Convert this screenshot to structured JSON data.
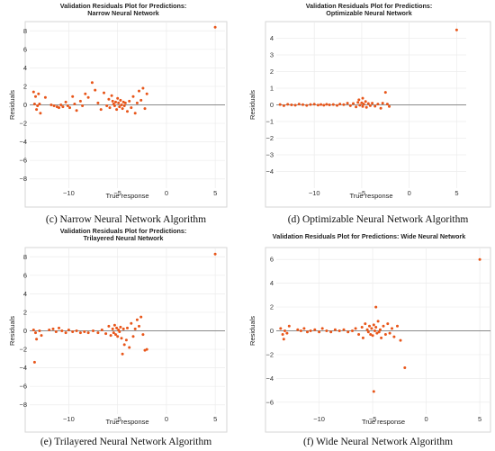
{
  "chart_data": [
    {
      "type": "scatter",
      "title_lines": [
        "Validation Residuals Plot for Predictions:",
        "Narrow Neural Network"
      ],
      "xlabel": "True response",
      "ylabel": "Residuals",
      "caption": "(c) Narrow Neural Network Algorithm",
      "xlim": [
        -14,
        6
      ],
      "ylim": [
        -9,
        9
      ],
      "xticks": [
        -10,
        -5,
        0,
        5
      ],
      "yticks": [
        -8,
        -6,
        -4,
        -2,
        0,
        2,
        4,
        6,
        8
      ],
      "grid": true,
      "color": "#e8561a",
      "points": [
        [
          -13.6,
          1.4
        ],
        [
          -13.4,
          0.9
        ],
        [
          -13.5,
          0.1
        ],
        [
          -13.2,
          -0.1
        ],
        [
          -13.0,
          0.1
        ],
        [
          -13.3,
          -0.5
        ],
        [
          -13.1,
          1.2
        ],
        [
          -12.9,
          -0.9
        ],
        [
          -12.4,
          0.8
        ],
        [
          -11.8,
          0.0
        ],
        [
          -11.5,
          -0.1
        ],
        [
          -11.2,
          -0.2
        ],
        [
          -11.0,
          -0.3
        ],
        [
          -10.8,
          0.0
        ],
        [
          -10.6,
          -0.2
        ],
        [
          -10.3,
          0.3
        ],
        [
          -10.1,
          -0.1
        ],
        [
          -9.9,
          -0.3
        ],
        [
          -9.6,
          0.9
        ],
        [
          -9.4,
          0.1
        ],
        [
          -9.2,
          -0.6
        ],
        [
          -8.8,
          0.4
        ],
        [
          -8.6,
          -0.1
        ],
        [
          -8.3,
          1.2
        ],
        [
          -8.0,
          0.8
        ],
        [
          -7.6,
          2.4
        ],
        [
          -7.3,
          1.6
        ],
        [
          -7.0,
          0.2
        ],
        [
          -6.7,
          -0.5
        ],
        [
          -6.4,
          1.3
        ],
        [
          -6.1,
          -0.1
        ],
        [
          -5.9,
          0.6
        ],
        [
          -5.8,
          -0.3
        ],
        [
          -5.6,
          1.0
        ],
        [
          -5.5,
          0.4
        ],
        [
          -5.4,
          0.1
        ],
        [
          -5.3,
          -0.1
        ],
        [
          -5.2,
          0.3
        ],
        [
          -5.1,
          -0.5
        ],
        [
          -5.0,
          0.7
        ],
        [
          -4.9,
          0.2
        ],
        [
          -4.8,
          -0.2
        ],
        [
          -4.7,
          0.5
        ],
        [
          -4.6,
          0.0
        ],
        [
          -4.5,
          -0.4
        ],
        [
          -4.4,
          0.3
        ],
        [
          -4.3,
          -0.1
        ],
        [
          -4.2,
          0.2
        ],
        [
          -4.0,
          -0.7
        ],
        [
          -3.8,
          0.4
        ],
        [
          -3.6,
          -0.3
        ],
        [
          -3.4,
          0.9
        ],
        [
          -3.2,
          -0.9
        ],
        [
          -3.0,
          0.2
        ],
        [
          -2.8,
          1.5
        ],
        [
          -2.6,
          0.5
        ],
        [
          -2.4,
          1.8
        ],
        [
          -2.2,
          -0.4
        ],
        [
          -2.0,
          1.2
        ],
        [
          5.0,
          8.4
        ]
      ]
    },
    {
      "type": "scatter",
      "title_lines": [
        "Validation Residuals Plot for Predictions:",
        "Optimizable Neural Network"
      ],
      "xlabel": "True response",
      "ylabel": "Residuals",
      "caption": "(d) Optimizable Neural Network Algorithm",
      "xlim": [
        -14,
        6
      ],
      "ylim": [
        -5,
        5
      ],
      "xticks": [
        -10,
        -5,
        0,
        5
      ],
      "yticks": [
        -4,
        -3,
        -2,
        -1,
        0,
        1,
        2,
        3,
        4
      ],
      "grid": true,
      "color": "#e8561a",
      "points": [
        [
          -13.6,
          0.02
        ],
        [
          -13.2,
          -0.05
        ],
        [
          -12.8,
          0.03
        ],
        [
          -12.4,
          0.0
        ],
        [
          -12.0,
          -0.02
        ],
        [
          -11.6,
          0.05
        ],
        [
          -11.2,
          0.01
        ],
        [
          -10.8,
          -0.03
        ],
        [
          -10.4,
          0.02
        ],
        [
          -10.0,
          0.04
        ],
        [
          -9.6,
          -0.01
        ],
        [
          -9.3,
          0.02
        ],
        [
          -9.0,
          -0.02
        ],
        [
          -8.7,
          0.03
        ],
        [
          -8.4,
          0.0
        ],
        [
          -8.0,
          0.02
        ],
        [
          -7.6,
          -0.03
        ],
        [
          -7.3,
          0.05
        ],
        [
          -6.9,
          0.01
        ],
        [
          -6.5,
          0.1
        ],
        [
          -6.2,
          -0.05
        ],
        [
          -5.9,
          0.08
        ],
        [
          -5.6,
          -0.12
        ],
        [
          -5.4,
          0.15
        ],
        [
          -5.2,
          -0.02
        ],
        [
          -5.0,
          0.12
        ],
        [
          -4.9,
          -0.1
        ],
        [
          -4.8,
          0.05
        ],
        [
          -4.6,
          0.2
        ],
        [
          -4.5,
          -0.15
        ],
        [
          -4.3,
          0.08
        ],
        [
          -4.1,
          -0.05
        ],
        [
          -4.9,
          0.4
        ],
        [
          -5.3,
          0.3
        ],
        [
          -3.9,
          0.1
        ],
        [
          -3.6,
          -0.08
        ],
        [
          -3.3,
          0.05
        ],
        [
          -3.0,
          -0.2
        ],
        [
          -2.8,
          0.1
        ],
        [
          -2.5,
          0.75
        ],
        [
          -2.3,
          0.05
        ],
        [
          -2.1,
          -0.1
        ],
        [
          5.0,
          4.5
        ]
      ]
    },
    {
      "type": "scatter",
      "title_lines": [
        "Validation Residuals Plot for Predictions:",
        "Trilayered Neural Network"
      ],
      "xlabel": "True response",
      "ylabel": "Residuals",
      "caption": "(e) Trilayered Neural Network Algorithm",
      "xlim": [
        -14,
        6
      ],
      "ylim": [
        -9,
        9
      ],
      "xticks": [
        -10,
        -5,
        0,
        5
      ],
      "yticks": [
        -8,
        -6,
        -4,
        -2,
        0,
        2,
        4,
        6,
        8
      ],
      "grid": true,
      "color": "#e8561a",
      "points": [
        [
          -13.6,
          0.1
        ],
        [
          -13.4,
          -0.2
        ],
        [
          -13.3,
          -0.9
        ],
        [
          -13.5,
          -3.4
        ],
        [
          -13.0,
          0.0
        ],
        [
          -12.8,
          -0.5
        ],
        [
          -12.0,
          0.1
        ],
        [
          -11.6,
          0.2
        ],
        [
          -11.3,
          -0.1
        ],
        [
          -11.0,
          0.3
        ],
        [
          -10.7,
          0.0
        ],
        [
          -10.3,
          -0.2
        ],
        [
          -10.0,
          0.1
        ],
        [
          -9.6,
          -0.1
        ],
        [
          -9.2,
          0.0
        ],
        [
          -8.8,
          -0.2
        ],
        [
          -8.4,
          -0.1
        ],
        [
          -8.0,
          -0.2
        ],
        [
          -7.5,
          0.0
        ],
        [
          -7.0,
          -0.2
        ],
        [
          -6.6,
          0.1
        ],
        [
          -6.2,
          -0.3
        ],
        [
          -5.9,
          0.5
        ],
        [
          -5.7,
          -0.5
        ],
        [
          -5.5,
          0.2
        ],
        [
          -5.4,
          -0.2
        ],
        [
          -5.3,
          0.6
        ],
        [
          -5.2,
          -0.4
        ],
        [
          -5.1,
          0.3
        ],
        [
          -5.0,
          -0.6
        ],
        [
          -4.9,
          0.1
        ],
        [
          -4.8,
          -0.1
        ],
        [
          -4.7,
          0.4
        ],
        [
          -4.6,
          -0.8
        ],
        [
          -4.5,
          -2.5
        ],
        [
          -4.4,
          0.2
        ],
        [
          -4.3,
          -1.5
        ],
        [
          -4.1,
          -1.0
        ],
        [
          -4.0,
          0.3
        ],
        [
          -3.8,
          -1.8
        ],
        [
          -3.6,
          0.8
        ],
        [
          -3.4,
          -0.6
        ],
        [
          -3.2,
          0.2
        ],
        [
          -3.0,
          1.2
        ],
        [
          -2.8,
          0.5
        ],
        [
          -2.6,
          1.5
        ],
        [
          -2.4,
          -0.4
        ],
        [
          -2.2,
          -2.1
        ],
        [
          -2.0,
          -2.0
        ],
        [
          5.0,
          8.3
        ]
      ]
    },
    {
      "type": "scatter",
      "title_lines": [
        "Validation Residuals Plot for Predictions: Wide Neural Network"
      ],
      "xlabel": "True response",
      "ylabel": "Residuals",
      "caption": "(f) Wide Neural Network Algorithm",
      "xlim": [
        -14,
        6
      ],
      "ylim": [
        -7,
        7
      ],
      "xticks": [
        -10,
        -5,
        0,
        5
      ],
      "yticks": [
        -6,
        -4,
        -2,
        0,
        2,
        4,
        6
      ],
      "grid": true,
      "color": "#e8561a",
      "points": [
        [
          -13.6,
          0.2
        ],
        [
          -13.4,
          -0.3
        ],
        [
          -13.3,
          -0.7
        ],
        [
          -13.2,
          0.0
        ],
        [
          -13.0,
          -0.2
        ],
        [
          -12.8,
          0.4
        ],
        [
          -12.0,
          0.1
        ],
        [
          -11.7,
          0.0
        ],
        [
          -11.4,
          0.2
        ],
        [
          -11.1,
          -0.1
        ],
        [
          -10.8,
          0.0
        ],
        [
          -10.4,
          0.1
        ],
        [
          -10.0,
          -0.1
        ],
        [
          -9.7,
          0.2
        ],
        [
          -9.3,
          0.0
        ],
        [
          -8.9,
          -0.1
        ],
        [
          -8.5,
          0.1
        ],
        [
          -8.1,
          0.0
        ],
        [
          -7.7,
          0.1
        ],
        [
          -7.3,
          -0.1
        ],
        [
          -6.9,
          0.0
        ],
        [
          -6.6,
          0.2
        ],
        [
          -6.3,
          -0.3
        ],
        [
          -6.0,
          0.3
        ],
        [
          -5.9,
          -0.6
        ],
        [
          -5.7,
          0.6
        ],
        [
          -5.5,
          0.1
        ],
        [
          -5.4,
          -0.1
        ],
        [
          -5.3,
          0.4
        ],
        [
          -5.2,
          -0.3
        ],
        [
          -5.1,
          0.2
        ],
        [
          -5.0,
          -0.4
        ],
        [
          -4.9,
          0.5
        ],
        [
          -4.9,
          -5.1
        ],
        [
          -4.8,
          0.0
        ],
        [
          -4.7,
          0.3
        ],
        [
          -4.7,
          2.0
        ],
        [
          -4.6,
          -0.2
        ],
        [
          -4.5,
          0.8
        ],
        [
          -4.4,
          -0.1
        ],
        [
          -4.3,
          0.1
        ],
        [
          -4.2,
          -0.6
        ],
        [
          -4.0,
          0.4
        ],
        [
          -3.8,
          -0.3
        ],
        [
          -3.6,
          0.6
        ],
        [
          -3.4,
          -0.2
        ],
        [
          -3.2,
          0.2
        ],
        [
          -3.0,
          -0.5
        ],
        [
          -2.7,
          0.4
        ],
        [
          -2.4,
          -0.8
        ],
        [
          -2.0,
          -3.1
        ],
        [
          5.0,
          6.0
        ]
      ]
    }
  ]
}
